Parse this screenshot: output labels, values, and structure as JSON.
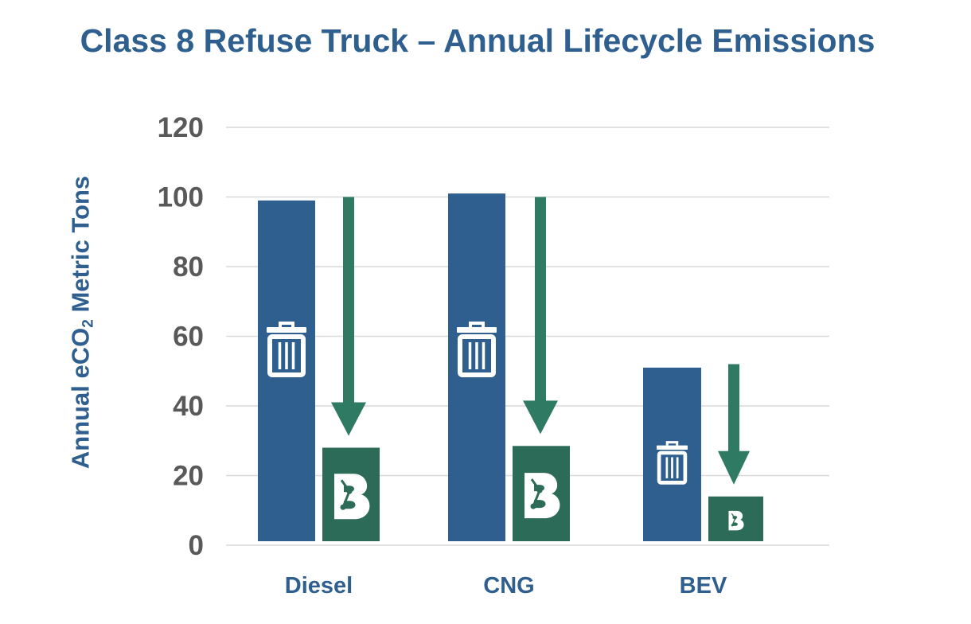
{
  "chart_data": {
    "type": "bar",
    "title": "Class 8 Refuse Truck – Annual Lifecycle Emissions",
    "ylabel_prefix": "Annual eCO",
    "ylabel_sub": "2",
    "ylabel_suffix": " Metric Tons",
    "categories": [
      "Diesel",
      "CNG",
      "BEV"
    ],
    "series": [
      {
        "icon": "trash-can-icon",
        "color": "#2e5f8e",
        "values": [
          99,
          101,
          51
        ]
      },
      {
        "icon": "b-logo-icon",
        "color": "#2b6b57",
        "values": [
          28,
          28.5,
          14
        ]
      }
    ],
    "arrows": {
      "color": "#2e7a63",
      "from": [
        100,
        100,
        52
      ]
    },
    "ylim": [
      0,
      120
    ],
    "yticks": [
      "0",
      "20",
      "40",
      "60",
      "80",
      "100",
      "120"
    ],
    "grid": true,
    "legend": "none"
  }
}
